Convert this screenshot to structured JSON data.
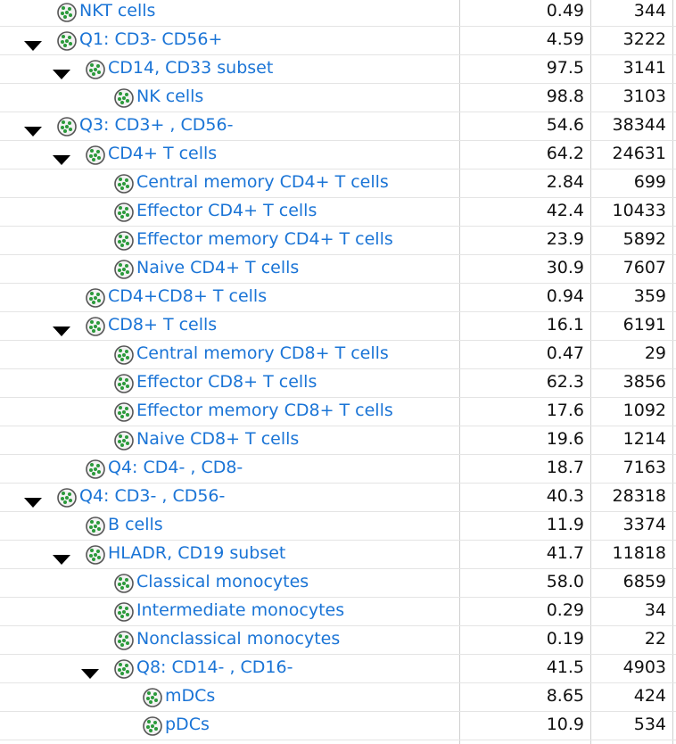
{
  "rows": [
    {
      "name": "NKT cells",
      "freq": "0.49",
      "count": 344
    },
    {
      "name": "Q1: CD3- CD56+",
      "freq": "4.59",
      "count": 3222,
      "children": [
        {
          "name": "CD14, CD33 subset",
          "freq": "97.5",
          "count": 3141,
          "children": [
            {
              "name": "NK cells",
              "freq": "98.8",
              "count": 3103
            }
          ]
        }
      ]
    },
    {
      "name": "Q3: CD3+ , CD56-",
      "freq": "54.6",
      "count": 38344,
      "children": [
        {
          "name": "CD4+ T cells",
          "freq": "64.2",
          "count": 24631,
          "children": [
            {
              "name": "Central memory CD4+ T cells",
              "freq": "2.84",
              "count": 699
            },
            {
              "name": "Effector CD4+ T cells",
              "freq": "42.4",
              "count": 10433
            },
            {
              "name": "Effector memory CD4+ T cells",
              "freq": "23.9",
              "count": 5892
            },
            {
              "name": "Naive CD4+ T cells",
              "freq": "30.9",
              "count": 7607
            }
          ]
        },
        {
          "name": "CD4+CD8+ T cells",
          "freq": "0.94",
          "count": 359
        },
        {
          "name": "CD8+ T cells",
          "freq": "16.1",
          "count": 6191,
          "children": [
            {
              "name": "Central memory CD8+ T cells",
              "freq": "0.47",
              "count": 29
            },
            {
              "name": "Effector CD8+ T cells",
              "freq": "62.3",
              "count": 3856
            },
            {
              "name": "Effector memory CD8+ T cells",
              "freq": "17.6",
              "count": 1092
            },
            {
              "name": "Naive CD8+ T cells",
              "freq": "19.6",
              "count": 1214
            }
          ]
        },
        {
          "name": "Q4: CD4- , CD8-",
          "freq": "18.7",
          "count": 7163
        }
      ]
    },
    {
      "name": "Q4: CD3- , CD56-",
      "freq": "40.3",
      "count": 28318,
      "children": [
        {
          "name": "B cells",
          "freq": "11.9",
          "count": 3374
        },
        {
          "name": "HLADR, CD19 subset",
          "freq": "41.7",
          "count": 11818,
          "children": [
            {
              "name": "Classical monocytes",
              "freq": "58.0",
              "count": 6859
            },
            {
              "name": "Intermediate monocytes",
              "freq": "0.29",
              "count": 34
            },
            {
              "name": "Nonclassical monocytes",
              "freq": "0.19",
              "count": 22
            },
            {
              "name": "Q8: CD14- , CD16-",
              "freq": "41.5",
              "count": 4903,
              "children": [
                {
                  "name": "mDCs",
                  "freq": "8.65",
                  "count": 424
                },
                {
                  "name": "pDCs",
                  "freq": "10.9",
                  "count": 534
                }
              ]
            }
          ]
        }
      ]
    }
  ]
}
